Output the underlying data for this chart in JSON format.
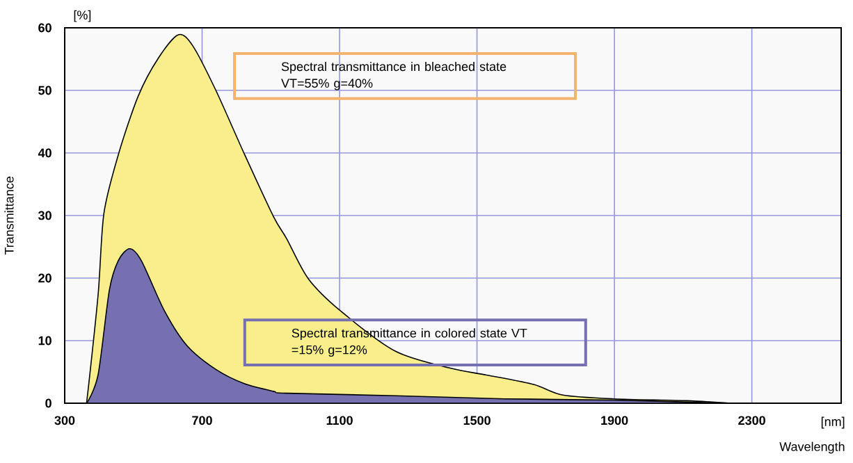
{
  "chart_data": {
    "type": "area",
    "xlabel": "Wavelength",
    "ylabel": "Transmittance",
    "annotations": [
      "Spectral transmittance in bleached state VT=55% g=40%",
      "Spectral transmittance in colored state VT =15% g=12%",
      "[%]",
      "[nm]"
    ],
    "xlim": [
      300,
      2560
    ],
    "ylim": [
      0,
      60
    ],
    "xticks": [
      300,
      700,
      1100,
      1500,
      1900,
      2300
    ],
    "yticks": [
      0,
      10,
      20,
      30,
      40,
      50,
      60
    ],
    "grid": true,
    "series": [
      {
        "color": "#f8ee8c",
        "x": [
          359,
          364,
          397,
          414,
          456,
          514,
          573,
          631,
          673,
          740,
          824,
          908,
          946,
          1009,
          1104,
          1263,
          1422,
          1528,
          1665,
          1750,
          1898,
          2110,
          2237
        ],
        "values": [
          0,
          0.2,
          17.2,
          30.3,
          39.7,
          49.1,
          55.2,
          58.9,
          57.1,
          50.0,
          39.7,
          29.8,
          26.3,
          19.9,
          14.7,
          8.3,
          5.6,
          4.5,
          3.0,
          1.3,
          0.7,
          0.4,
          0
        ]
      },
      {
        "color": "#7670b0",
        "x": [
          364,
          397,
          430,
          456,
          489,
          523,
          590,
          656,
          740,
          824,
          908,
          946,
          1263,
          1581,
          1898,
          2163,
          2216
        ],
        "values": [
          0,
          4.5,
          18.1,
          22.8,
          24.7,
          22.8,
          14.8,
          9.2,
          5.4,
          3.1,
          1.9,
          1.6,
          1.2,
          0.7,
          0.5,
          0.1,
          0
        ]
      }
    ]
  }
}
